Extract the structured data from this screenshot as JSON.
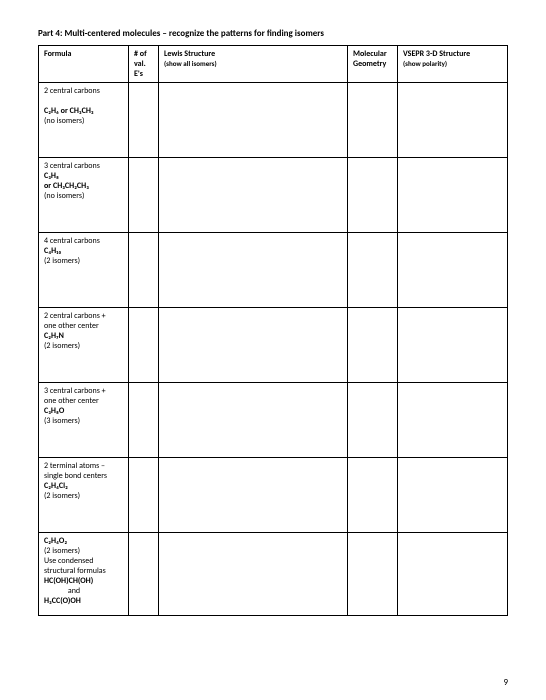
{
  "part_title": "Part 4: Multi-centered molecules – recognize the patterns for finding isomers",
  "page_number": "9",
  "table": {
    "columns": {
      "formula": "Formula",
      "val": "# of\nval.\nE's",
      "lewis_main": "Lewis Structure",
      "lewis_sub": "(show all isomers)",
      "geom_main": "Molecular",
      "geom_sub": "Geometry",
      "vsepr_main": "VSEPR 3-D Structure",
      "vsepr_sub": "(show polarity)"
    },
    "rows": [
      {
        "line1": "2 central carbons",
        "blank": "",
        "formula_html": "C₂H₆  or  CH₃CH₃",
        "note": "(no isomers)"
      },
      {
        "line1": "3 central carbons",
        "formula_html": "C₃H₈",
        "line2_html": "or CH₃CH₂CH₃",
        "note": "(no isomers)"
      },
      {
        "line1": "4 central carbons",
        "formula_html": "C₄H₁₀",
        "note": "(2 isomers)"
      },
      {
        "line1": "2 central carbons +",
        "line1b": "one other center",
        "formula_html": "C₂H₇N",
        "note": "(2 isomers)"
      },
      {
        "line1": "3 central carbons +",
        "line1b": "one other center",
        "formula_html": "C₃H₈O",
        "note": "(3 isomers)"
      },
      {
        "line1": "2 terminal atoms –",
        "line1b": "single bond centers",
        "formula_html": "C₂H₄Cl₂",
        "note": "(2 isomers)"
      },
      {
        "formula_html": "C₂H₄O₂",
        "note": "(2 isomers)",
        "line_extra1": "Use condensed",
        "line_extra2": "structural formulas",
        "f2_html": "HC(OH)CH(OH)",
        "and": "and",
        "f3_html": "H₃CC(O)OH"
      }
    ]
  }
}
